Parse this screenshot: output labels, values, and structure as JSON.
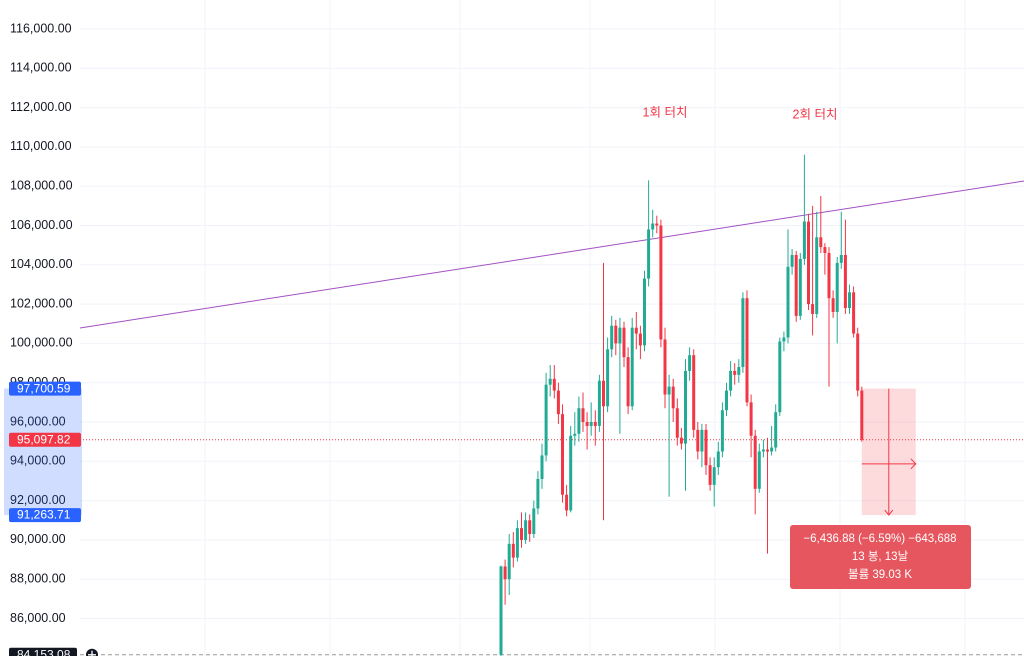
{
  "chart_data": {
    "type": "candlestick",
    "ylim": [
      84092,
      117476
    ],
    "yticks": [
      {
        "value": 86000,
        "label": "86,000.00"
      },
      {
        "value": 88000,
        "label": "88,000.00"
      },
      {
        "value": 90000,
        "label": "90,000.00"
      },
      {
        "value": 92000,
        "label": "92,000.00"
      },
      {
        "value": 94000,
        "label": "94,000.00"
      },
      {
        "value": 96000,
        "label": "96,000.00"
      },
      {
        "value": 98000,
        "label": "98,000.00"
      },
      {
        "value": 100000,
        "label": "100,000.00"
      },
      {
        "value": 102000,
        "label": "102,000.00"
      },
      {
        "value": 104000,
        "label": "104,000.00"
      },
      {
        "value": 106000,
        "label": "106,000.00"
      },
      {
        "value": 108000,
        "label": "108,000.00"
      },
      {
        "value": 110000,
        "label": "110,000.00"
      },
      {
        "value": 112000,
        "label": "112,000.00"
      },
      {
        "value": 114000,
        "label": "114,000.00"
      },
      {
        "value": 116000,
        "label": "116,000.00"
      }
    ],
    "grid": true,
    "up_color": "#22ab94",
    "down_color": "#f23645",
    "candles": [
      [
        84150,
        88700,
        84100,
        88650
      ],
      [
        88650,
        89000,
        86700,
        88000
      ],
      [
        88000,
        90300,
        87200,
        89800
      ],
      [
        89800,
        90400,
        88600,
        89100
      ],
      [
        89100,
        91000,
        88900,
        90600
      ],
      [
        90600,
        91400,
        89600,
        90000
      ],
      [
        90000,
        91400,
        89800,
        91000
      ],
      [
        91000,
        91300,
        89900,
        90300
      ],
      [
        90300,
        92000,
        90100,
        91600
      ],
      [
        91600,
        93500,
        91300,
        93100
      ],
      [
        93100,
        94900,
        92600,
        94300
      ],
      [
        94300,
        98500,
        94000,
        97900
      ],
      [
        97900,
        98900,
        97300,
        98200
      ],
      [
        98200,
        98900,
        97200,
        97600
      ],
      [
        97600,
        98000,
        95900,
        96400
      ],
      [
        96400,
        96900,
        91900,
        92300
      ],
      [
        92300,
        92800,
        91200,
        91500
      ],
      [
        91500,
        95800,
        91400,
        95300
      ],
      [
        95300,
        96500,
        94800,
        95400
      ],
      [
        95400,
        97300,
        95000,
        96700
      ],
      [
        96700,
        97500,
        95500,
        96000
      ],
      [
        96000,
        96500,
        94600,
        95800
      ],
      [
        95800,
        97000,
        95300,
        96000
      ],
      [
        96000,
        96600,
        94800,
        95800
      ],
      [
        95800,
        98400,
        95500,
        98100
      ],
      [
        98100,
        104100,
        91000,
        96800
      ],
      [
        96800,
        100300,
        96500,
        99700
      ],
      [
        99700,
        101400,
        99300,
        100900
      ],
      [
        100900,
        101200,
        99400,
        100000
      ],
      [
        100000,
        101300,
        95400,
        100800
      ],
      [
        100800,
        101100,
        98800,
        99300
      ],
      [
        99300,
        99800,
        96400,
        96800
      ],
      [
        96800,
        101300,
        96600,
        100800
      ],
      [
        100800,
        101600,
        99700,
        100500
      ],
      [
        100500,
        100900,
        99200,
        99900
      ],
      [
        99900,
        103700,
        99600,
        103300
      ],
      [
        103300,
        108300,
        102900,
        105800
      ],
      [
        105800,
        106800,
        105400,
        106100
      ],
      [
        106100,
        106500,
        105600,
        106000
      ],
      [
        106000,
        106300,
        99800,
        100200
      ],
      [
        100200,
        100800,
        96700,
        97400
      ],
      [
        97400,
        98400,
        92200,
        97800
      ],
      [
        97800,
        98200,
        96000,
        96700
      ],
      [
        96700,
        97200,
        94800,
        95200
      ],
      [
        95200,
        95700,
        94600,
        94900
      ],
      [
        94900,
        99200,
        92500,
        98600
      ],
      [
        98600,
        99800,
        98100,
        99400
      ],
      [
        99400,
        99700,
        95200,
        95600
      ],
      [
        95600,
        96000,
        94100,
        94500
      ],
      [
        94500,
        95900,
        93700,
        95600
      ],
      [
        95600,
        95900,
        93300,
        93800
      ],
      [
        93800,
        94200,
        92500,
        92800
      ],
      [
        92800,
        94200,
        91700,
        93700
      ],
      [
        93700,
        95000,
        93300,
        94500
      ],
      [
        94500,
        97000,
        94200,
        96600
      ],
      [
        96600,
        98000,
        96300,
        97600
      ],
      [
        97600,
        99100,
        97300,
        98600
      ],
      [
        98600,
        99000,
        97900,
        98400
      ],
      [
        98400,
        99200,
        98000,
        98800
      ],
      [
        98800,
        102600,
        98500,
        102300
      ],
      [
        102300,
        102700,
        96800,
        97000
      ],
      [
        97000,
        97400,
        94200,
        95300
      ],
      [
        95300,
        95600,
        91300,
        92600
      ],
      [
        92600,
        94900,
        92400,
        94500
      ],
      [
        94500,
        95100,
        94200,
        94600
      ],
      [
        94600,
        95200,
        89300,
        94500
      ],
      [
        94500,
        95800,
        94300,
        94700
      ],
      [
        94700,
        96900,
        94500,
        96500
      ],
      [
        96500,
        100300,
        96300,
        100100
      ],
      [
        100100,
        100600,
        99600,
        100300
      ],
      [
        100300,
        105800,
        100000,
        103900
      ],
      [
        103900,
        104800,
        103500,
        104500
      ],
      [
        104500,
        104700,
        101100,
        101400
      ],
      [
        101400,
        104600,
        101200,
        104300
      ],
      [
        104300,
        109600,
        104000,
        106200
      ],
      [
        106200,
        106600,
        101700,
        102000
      ],
      [
        102000,
        107000,
        100400,
        101500
      ],
      [
        101500,
        106700,
        101300,
        105400
      ],
      [
        105400,
        107500,
        104600,
        104900
      ],
      [
        104900,
        105100,
        103500,
        104600
      ],
      [
        104600,
        104900,
        97800,
        102300
      ],
      [
        102300,
        102700,
        101300,
        101600
      ],
      [
        101600,
        104400,
        100000,
        104100
      ],
      [
        104100,
        106700,
        103800,
        104500
      ],
      [
        104500,
        106300,
        101500,
        101800
      ],
      [
        101800,
        103000,
        101500,
        102600
      ],
      [
        102600,
        102900,
        100300,
        100500
      ],
      [
        100500,
        100800,
        97300,
        97600
      ],
      [
        97600,
        97800,
        95000,
        95097.82
      ]
    ],
    "trendline": {
      "start": 100784,
      "end": 108265,
      "color": "#a34fc4"
    },
    "annotations": [
      "1회 터치",
      "2회 터치"
    ],
    "current_price": {
      "value": 95097.82,
      "label": "95,097.82"
    },
    "range_top": {
      "value": 97700.59,
      "label": "97,700.59"
    },
    "range_bottom": {
      "value": 91263.71,
      "label": "91,263.71"
    },
    "low_marker": {
      "value": 84153.08,
      "label": "84,153.08"
    },
    "measure": {
      "change": "−6,436.88 (−6.59%) −643,688",
      "bars": "13 봉, 13날",
      "volume": "볼륨 39.03 K"
    }
  }
}
